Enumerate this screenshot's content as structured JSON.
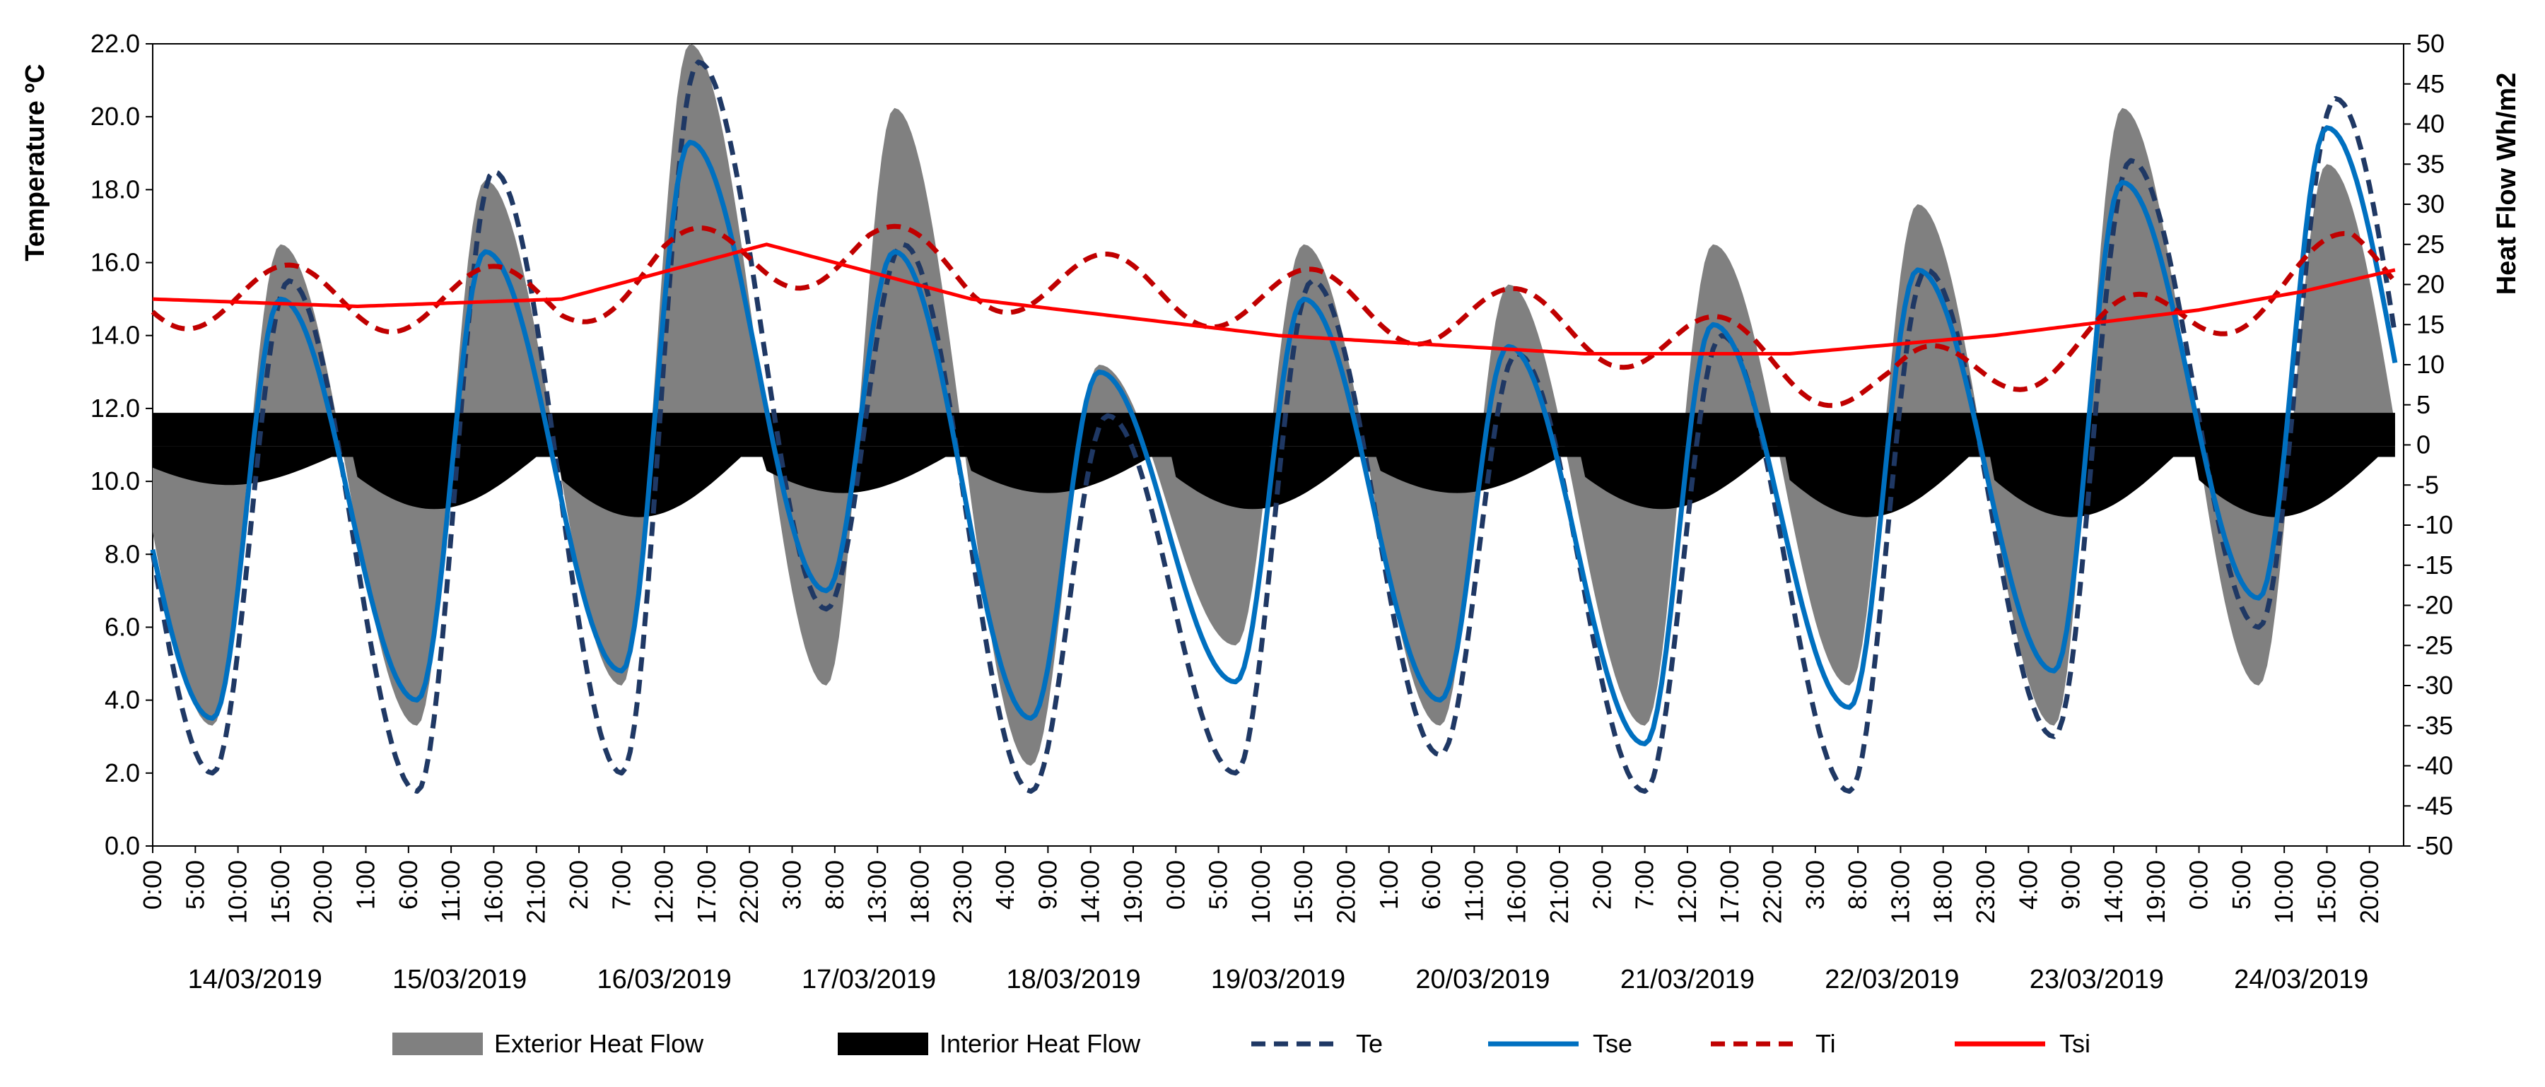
{
  "chart_data": {
    "type": "area+line (dual axis)",
    "left_axis": {
      "label": "Temperature ºC",
      "ylim": [
        0,
        22
      ],
      "ticks": [
        "0.0",
        "2.0",
        "4.0",
        "6.0",
        "8.0",
        "10.0",
        "12.0",
        "14.0",
        "16.0",
        "18.0",
        "20.0",
        "22.0"
      ]
    },
    "right_axis": {
      "label": "Heat Flow Wh/m2",
      "ylim": [
        -50,
        50
      ],
      "ticks": [
        "-50",
        "-45",
        "-40",
        "-35",
        "-30",
        "-25",
        "-20",
        "-15",
        "-10",
        "-5",
        "0",
        "5",
        "10",
        "15",
        "20",
        "25",
        "30",
        "35",
        "40",
        "45",
        "50"
      ]
    },
    "x_axis": {
      "hours_per_day": 24,
      "days": 11,
      "tick_labels": [
        "0:00",
        "5:00",
        "10:00",
        "15:00",
        "20:00",
        "1:00",
        "6:00",
        "11:00",
        "16:00",
        "21:00",
        "2:00",
        "7:00",
        "12:00",
        "17:00",
        "22:00",
        "3:00",
        "8:00",
        "13:00",
        "18:00",
        "23:00",
        "4:00",
        "9:00",
        "14:00",
        "19:00",
        "0:00",
        "5:00",
        "10:00",
        "15:00",
        "20:00",
        "1:00",
        "6:00",
        "11:00",
        "16:00",
        "21:00",
        "2:00",
        "7:00",
        "12:00",
        "17:00",
        "22:00",
        "3:00",
        "8:00",
        "13:00",
        "18:00",
        "23:00",
        "4:00",
        "9:00",
        "14:00",
        "19:00",
        "0:00",
        "5:00",
        "10:00",
        "15:00",
        "20:00"
      ],
      "date_labels": [
        "14/03/2019",
        "15/03/2019",
        "16/03/2019",
        "17/03/2019",
        "18/03/2019",
        "19/03/2019",
        "20/03/2019",
        "21/03/2019",
        "22/03/2019",
        "23/03/2019",
        "24/03/2019"
      ]
    },
    "legend": {
      "position": "bottom",
      "entries": [
        {
          "name": "Exterior Heat Flow",
          "style": "area",
          "color": "#808080"
        },
        {
          "name": "Interior Heat Flow",
          "style": "area",
          "color": "#000000"
        },
        {
          "name": "Te",
          "style": "dashed",
          "color": "#1f3864"
        },
        {
          "name": "Tse",
          "style": "solid",
          "color": "#0070c0"
        },
        {
          "name": "Ti",
          "style": "dashed",
          "color": "#c00000"
        },
        {
          "name": "Tsi",
          "style": "solid",
          "color": "#ff0000"
        }
      ]
    },
    "daily": {
      "te_min": [
        2.0,
        1.5,
        2.0,
        6.5,
        1.5,
        2.0,
        2.5,
        1.5,
        1.5,
        3.0,
        6.0
      ],
      "te_max": [
        15.5,
        18.5,
        21.5,
        16.5,
        11.8,
        15.5,
        13.5,
        14.0,
        15.8,
        18.8,
        20.5
      ],
      "tse_min": [
        3.5,
        4.0,
        4.8,
        7.0,
        3.5,
        4.5,
        4.0,
        2.8,
        3.8,
        4.8,
        6.8
      ],
      "tse_max": [
        15.0,
        16.3,
        19.3,
        16.3,
        13.0,
        15.0,
        13.7,
        14.3,
        15.8,
        18.2,
        19.7
      ],
      "exterior_heat_flow_min": [
        -35,
        -35,
        -30,
        -30,
        -40,
        -25,
        -35,
        -35,
        -30,
        -35,
        -30
      ],
      "exterior_heat_flow_max": [
        25,
        33,
        50,
        42,
        10,
        25,
        20,
        25,
        30,
        42,
        35
      ],
      "interior_heat_flow_min": [
        -5,
        -8,
        -9,
        -6,
        -6,
        -8,
        -6,
        -8,
        -9,
        -9,
        -9
      ]
    },
    "series": [
      {
        "name": "Ti",
        "points": [
          [
            0,
            15.1
          ],
          [
            24,
            15.0
          ],
          [
            48,
            15.0
          ],
          [
            60,
            16.0
          ],
          [
            84,
            16.3
          ],
          [
            96,
            15.6
          ],
          [
            132,
            15.0
          ],
          [
            156,
            14.5
          ],
          [
            180,
            13.8
          ],
          [
            204,
            12.6
          ],
          [
            216,
            13.2
          ],
          [
            240,
            14.7
          ],
          [
            258,
            16.0
          ],
          [
            263,
            15.7
          ]
        ]
      },
      {
        "name": "Tsi",
        "points": [
          [
            0,
            15.0
          ],
          [
            24,
            14.8
          ],
          [
            48,
            15.0
          ],
          [
            72,
            16.5
          ],
          [
            96,
            15.0
          ],
          [
            132,
            14.0
          ],
          [
            168,
            13.5
          ],
          [
            192,
            13.5
          ],
          [
            216,
            14.0
          ],
          [
            240,
            14.7
          ],
          [
            252,
            15.2
          ],
          [
            263,
            15.8
          ]
        ]
      }
    ]
  }
}
